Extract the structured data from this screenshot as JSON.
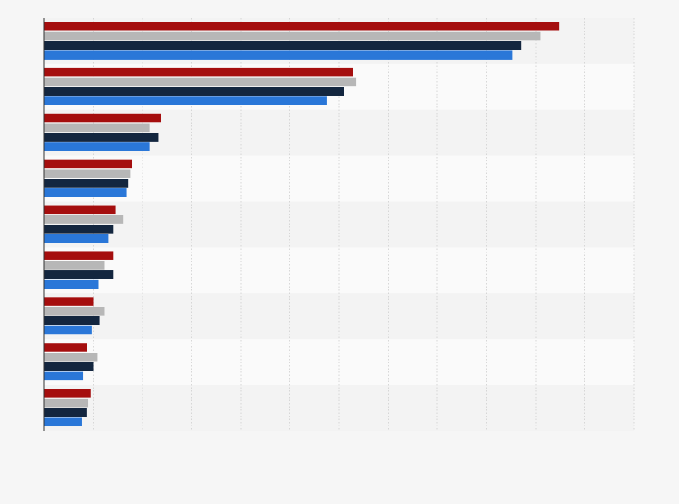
{
  "chart_data": {
    "type": "bar",
    "orientation": "horizontal",
    "title": "",
    "xlabel": "",
    "ylabel": "",
    "categories": [
      "",
      "",
      "",
      "",
      "",
      "",
      "",
      "",
      ""
    ],
    "xlim": [
      0,
      12
    ],
    "grid": true,
    "legend": "none",
    "series": [
      {
        "color": "#a50e0e",
        "values": [
          10.48,
          6.28,
          2.38,
          1.78,
          1.46,
          1.4,
          1.0,
          0.88,
          0.95
        ]
      },
      {
        "color": "#b7b7b7",
        "values": [
          10.1,
          6.35,
          2.14,
          1.75,
          1.6,
          1.22,
          1.22,
          1.09,
          0.9
        ]
      },
      {
        "color": "#13263f",
        "values": [
          9.71,
          6.1,
          2.32,
          1.71,
          1.4,
          1.4,
          1.13,
          1.0,
          0.86
        ]
      },
      {
        "color": "#2a77d8",
        "values": [
          9.53,
          5.76,
          2.14,
          1.68,
          1.31,
          1.11,
          0.97,
          0.79,
          0.77
        ]
      }
    ]
  }
}
